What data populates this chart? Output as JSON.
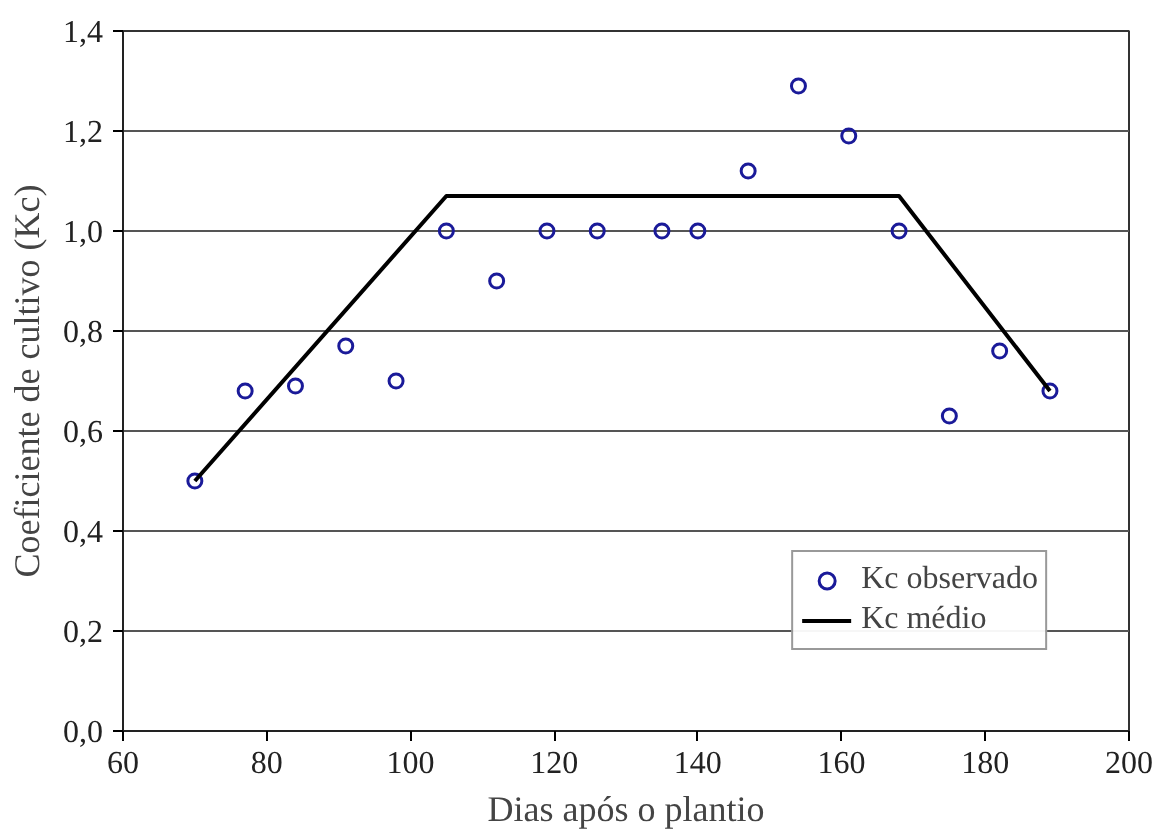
{
  "chart_data": {
    "type": "scatter",
    "xlabel": "Dias após o plantio",
    "ylabel": "Coeficiente de cultivo (Kc)",
    "xlim": [
      60,
      200
    ],
    "xticks": [
      60,
      80,
      100,
      120,
      140,
      160,
      180,
      200
    ],
    "ylim": [
      0,
      1.4
    ],
    "yticks": [
      {
        "value": 0,
        "label": "0,0"
      },
      {
        "value": 0.2,
        "label": "0,2"
      },
      {
        "value": 0.4,
        "label": "0,4"
      },
      {
        "value": 0.6,
        "label": "0,6"
      },
      {
        "value": 0.8,
        "label": "0,8"
      },
      {
        "value": 1.0,
        "label": "1,0"
      },
      {
        "value": 1.2,
        "label": "1,2"
      },
      {
        "value": 1.4,
        "label": "1,4"
      }
    ],
    "grid": "y",
    "legend": "bottom right",
    "series": [
      {
        "name": "Kc observado",
        "marker": "circle",
        "color": "#1a1a99",
        "x": [
          70,
          77,
          84,
          91,
          98,
          105,
          112,
          119,
          126,
          135,
          140,
          147,
          154,
          161,
          168,
          175,
          182,
          189
        ],
        "values": [
          0.5,
          0.68,
          0.69,
          0.77,
          0.7,
          1.0,
          0.9,
          1.0,
          1.0,
          1.0,
          1.0,
          1.12,
          1.29,
          1.19,
          1.0,
          0.63,
          0.76,
          0.68
        ]
      },
      {
        "name": "Kc médio",
        "type": "line",
        "line_style": "solid",
        "color": "#000000",
        "x": [
          70,
          105,
          168,
          189
        ],
        "values": [
          0.5,
          1.07,
          1.07,
          0.68
        ]
      }
    ]
  }
}
